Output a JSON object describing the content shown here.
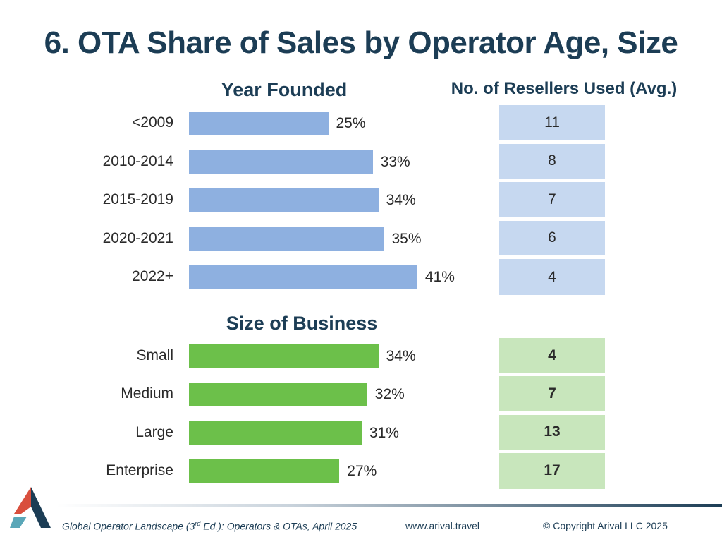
{
  "title": "6. OTA Share of Sales by Operator Age, Size",
  "colors": {
    "title": "#1c3d55",
    "year_bar": "#8eb0e0",
    "size_bar": "#6cc04a",
    "year_cell": "#c6d8f0",
    "size_cell": "#c8e6bc",
    "logo_dark": "#1c3d55",
    "logo_red": "#d94f3d",
    "logo_teal": "#5aa7b8"
  },
  "resellers_title": "No. of Resellers Used (Avg.)",
  "chart_data": [
    {
      "type": "bar",
      "orientation": "horizontal",
      "title": "Year Founded",
      "categories": [
        "<2009",
        "2010-2014",
        "2015-2019",
        "2020-2021",
        "2022+"
      ],
      "values": [
        25,
        33,
        34,
        35,
        41
      ],
      "value_labels": [
        "25%",
        "33%",
        "34%",
        "35%",
        "41%"
      ],
      "resellers": [
        "11",
        "8",
        "7",
        "6",
        "4"
      ]
    },
    {
      "type": "bar",
      "orientation": "horizontal",
      "title": "Size of Business",
      "categories": [
        "Small",
        "Medium",
        "Large",
        "Enterprise"
      ],
      "values": [
        34,
        32,
        31,
        27
      ],
      "value_labels": [
        "34%",
        "32%",
        "31%",
        "27%"
      ],
      "resellers": [
        "4",
        "7",
        "13",
        "17"
      ]
    }
  ],
  "footer": {
    "source_prefix": "Global Operator Landscape (3",
    "source_sup": "rd",
    "source_suffix": " Ed.):  Operators & OTAs, April 2025",
    "website": "www.arival.travel",
    "copyright": "© Copyright Arival LLC 2025"
  }
}
